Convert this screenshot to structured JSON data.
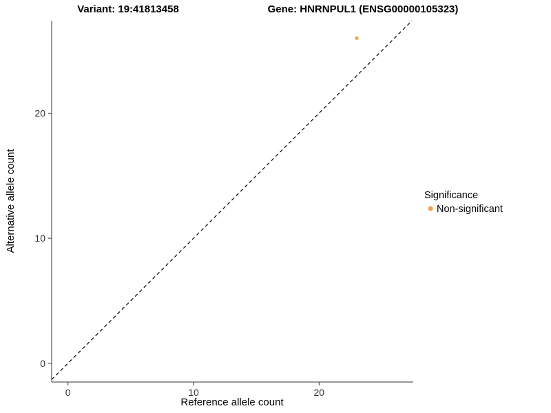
{
  "chart_data": {
    "type": "scatter",
    "title_left": "Variant: 19:41813458",
    "title_right": "Gene: HNRNPUL1 (ENSG00000105323)",
    "xlabel": "Reference allele count",
    "ylabel": "Alternative allele count",
    "xlim": [
      -1.3,
      27.5
    ],
    "ylim": [
      -1.5,
      27.4
    ],
    "xticks": [
      "0",
      "10",
      "20"
    ],
    "xtick_values": [
      0,
      10,
      20
    ],
    "yticks": [
      "0",
      "10",
      "20"
    ],
    "ytick_values": [
      0,
      10,
      20
    ],
    "grid": false,
    "reference_line": {
      "type": "identity",
      "style": "dashed",
      "color": "#000000"
    },
    "series": [
      {
        "name": "Non-significant",
        "color": "#F9A242",
        "points": [
          {
            "x": 23,
            "y": 26
          }
        ]
      }
    ],
    "legend": {
      "title": "Significance",
      "position": "right",
      "entries": [
        {
          "label": "Non-significant",
          "color": "#F9A242"
        }
      ]
    }
  }
}
